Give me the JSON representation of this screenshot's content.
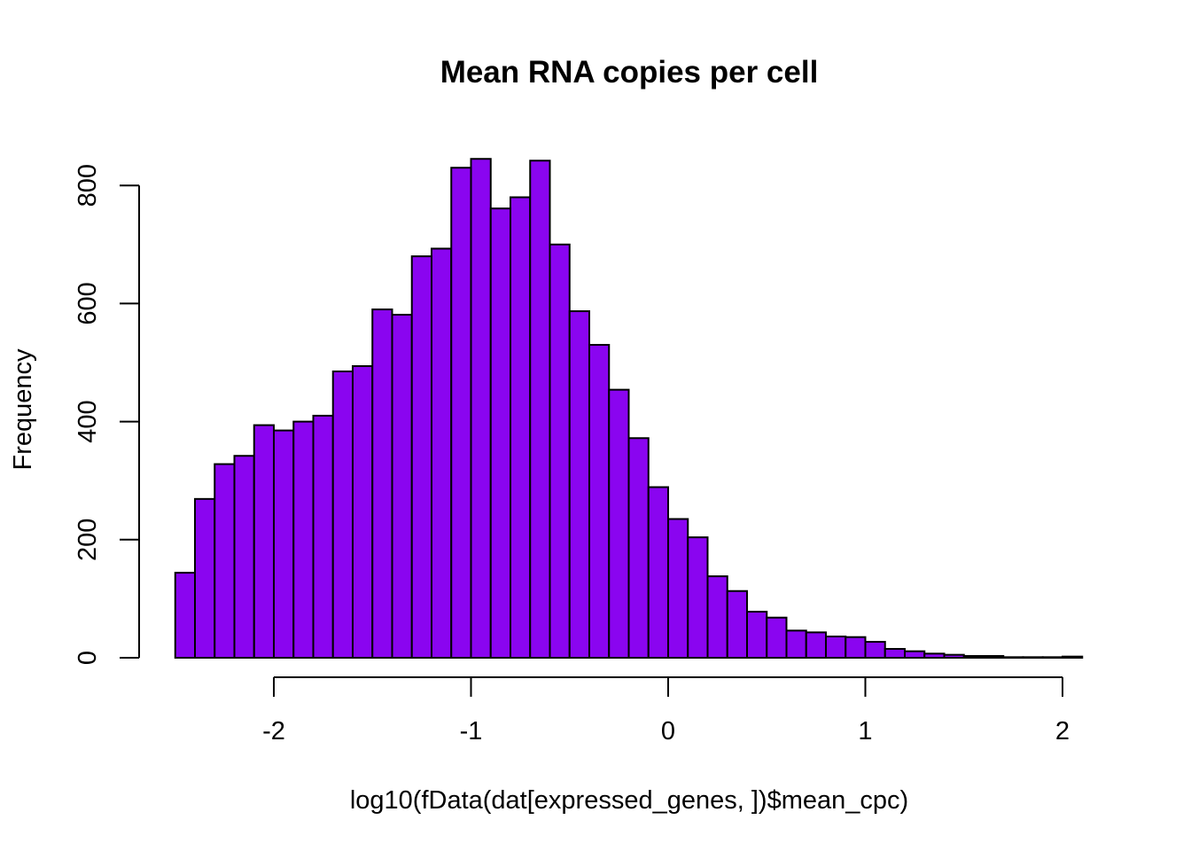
{
  "chart_data": {
    "type": "bar",
    "subtype": "histogram",
    "title": "Mean RNA copies per cell",
    "xlabel": "log10(fData(dat[expressed_genes, ])$mean_cpc)",
    "ylabel": "Frequency",
    "bar_color": "#8A05F0",
    "border_color": "#000000",
    "background": "#FFFFFF",
    "grid": false,
    "legend": "none",
    "bin_width": 0.1,
    "xlim": [
      -2.5,
      2.1
    ],
    "ylim": [
      0,
      850
    ],
    "x_ticks": [
      -2,
      -1,
      0,
      1,
      2
    ],
    "x_tick_labels": [
      "-2",
      "-1",
      "0",
      "1",
      "2"
    ],
    "y_ticks": [
      0,
      200,
      400,
      600,
      800
    ],
    "y_tick_labels": [
      "0",
      "200",
      "400",
      "600",
      "800"
    ],
    "bins": [
      {
        "x0": -2.5,
        "x1": -2.4,
        "count": 144
      },
      {
        "x0": -2.4,
        "x1": -2.3,
        "count": 269
      },
      {
        "x0": -2.3,
        "x1": -2.2,
        "count": 328
      },
      {
        "x0": -2.2,
        "x1": -2.1,
        "count": 342
      },
      {
        "x0": -2.1,
        "x1": -2.0,
        "count": 394
      },
      {
        "x0": -2.0,
        "x1": -1.9,
        "count": 385
      },
      {
        "x0": -1.9,
        "x1": -1.8,
        "count": 400
      },
      {
        "x0": -1.8,
        "x1": -1.7,
        "count": 410
      },
      {
        "x0": -1.7,
        "x1": -1.6,
        "count": 485
      },
      {
        "x0": -1.6,
        "x1": -1.5,
        "count": 494
      },
      {
        "x0": -1.5,
        "x1": -1.4,
        "count": 590
      },
      {
        "x0": -1.4,
        "x1": -1.3,
        "count": 581
      },
      {
        "x0": -1.3,
        "x1": -1.2,
        "count": 680
      },
      {
        "x0": -1.2,
        "x1": -1.1,
        "count": 693
      },
      {
        "x0": -1.1,
        "x1": -1.0,
        "count": 830
      },
      {
        "x0": -1.0,
        "x1": -0.9,
        "count": 845
      },
      {
        "x0": -0.9,
        "x1": -0.8,
        "count": 761
      },
      {
        "x0": -0.8,
        "x1": -0.7,
        "count": 780
      },
      {
        "x0": -0.7,
        "x1": -0.6,
        "count": 842
      },
      {
        "x0": -0.6,
        "x1": -0.5,
        "count": 700
      },
      {
        "x0": -0.5,
        "x1": -0.4,
        "count": 587
      },
      {
        "x0": -0.4,
        "x1": -0.3,
        "count": 530
      },
      {
        "x0": -0.3,
        "x1": -0.2,
        "count": 454
      },
      {
        "x0": -0.2,
        "x1": -0.1,
        "count": 372
      },
      {
        "x0": -0.1,
        "x1": 0.0,
        "count": 289
      },
      {
        "x0": 0.0,
        "x1": 0.1,
        "count": 235
      },
      {
        "x0": 0.1,
        "x1": 0.2,
        "count": 204
      },
      {
        "x0": 0.2,
        "x1": 0.3,
        "count": 138
      },
      {
        "x0": 0.3,
        "x1": 0.4,
        "count": 113
      },
      {
        "x0": 0.4,
        "x1": 0.5,
        "count": 78
      },
      {
        "x0": 0.5,
        "x1": 0.6,
        "count": 68
      },
      {
        "x0": 0.6,
        "x1": 0.7,
        "count": 46
      },
      {
        "x0": 0.7,
        "x1": 0.8,
        "count": 43
      },
      {
        "x0": 0.8,
        "x1": 0.9,
        "count": 36
      },
      {
        "x0": 0.9,
        "x1": 1.0,
        "count": 35
      },
      {
        "x0": 1.0,
        "x1": 1.1,
        "count": 27
      },
      {
        "x0": 1.1,
        "x1": 1.2,
        "count": 15
      },
      {
        "x0": 1.2,
        "x1": 1.3,
        "count": 11
      },
      {
        "x0": 1.3,
        "x1": 1.4,
        "count": 7
      },
      {
        "x0": 1.4,
        "x1": 1.5,
        "count": 5
      },
      {
        "x0": 1.5,
        "x1": 1.6,
        "count": 3
      },
      {
        "x0": 1.6,
        "x1": 1.7,
        "count": 3
      },
      {
        "x0": 1.7,
        "x1": 1.8,
        "count": 1
      },
      {
        "x0": 1.8,
        "x1": 1.9,
        "count": 1
      },
      {
        "x0": 1.9,
        "x1": 2.0,
        "count": 1
      },
      {
        "x0": 2.0,
        "x1": 2.1,
        "count": 2
      }
    ]
  }
}
